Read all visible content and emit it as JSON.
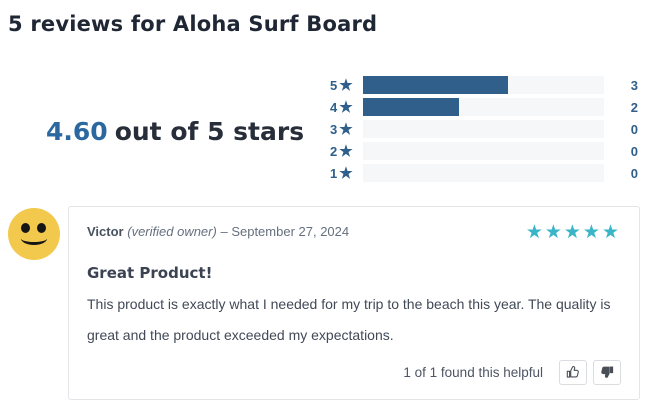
{
  "page_title": "5 reviews for Aloha Surf Board",
  "summary": {
    "score": "4.60",
    "label": "out of 5 stars"
  },
  "histogram": {
    "star_icon": "★",
    "total_reviews": 5,
    "rows": [
      {
        "stars": "5",
        "count": "3",
        "percent": 60
      },
      {
        "stars": "4",
        "count": "2",
        "percent": 40
      },
      {
        "stars": "3",
        "count": "0",
        "percent": 0
      },
      {
        "stars": "2",
        "count": "0",
        "percent": 0
      },
      {
        "stars": "1",
        "count": "0",
        "percent": 0
      }
    ]
  },
  "review": {
    "author": "Victor",
    "verified_label": "(verified owner)",
    "separator": "–",
    "date": "September 27, 2024",
    "rating": "★★★★★",
    "title": "Great Product!",
    "body": "This product is exactly what I needed for my trip to the beach this year. The quality is great and the product exceeded my expectations.",
    "helpful_text": "1 of 1 found this helpful",
    "thumb_up_icon": "thumbs-up",
    "thumb_down_icon": "thumbs-down"
  },
  "colors": {
    "brand_blue": "#2f5f8a",
    "score_blue": "#2c68a0",
    "star_teal": "#3ab5c8",
    "heading_dark": "#1f2634",
    "track_bg": "#f5f7f9",
    "card_border": "#e4e5e8",
    "meta_gray": "#65707e",
    "body_gray": "#414957",
    "avatar_yellow": "#f2c94c"
  }
}
